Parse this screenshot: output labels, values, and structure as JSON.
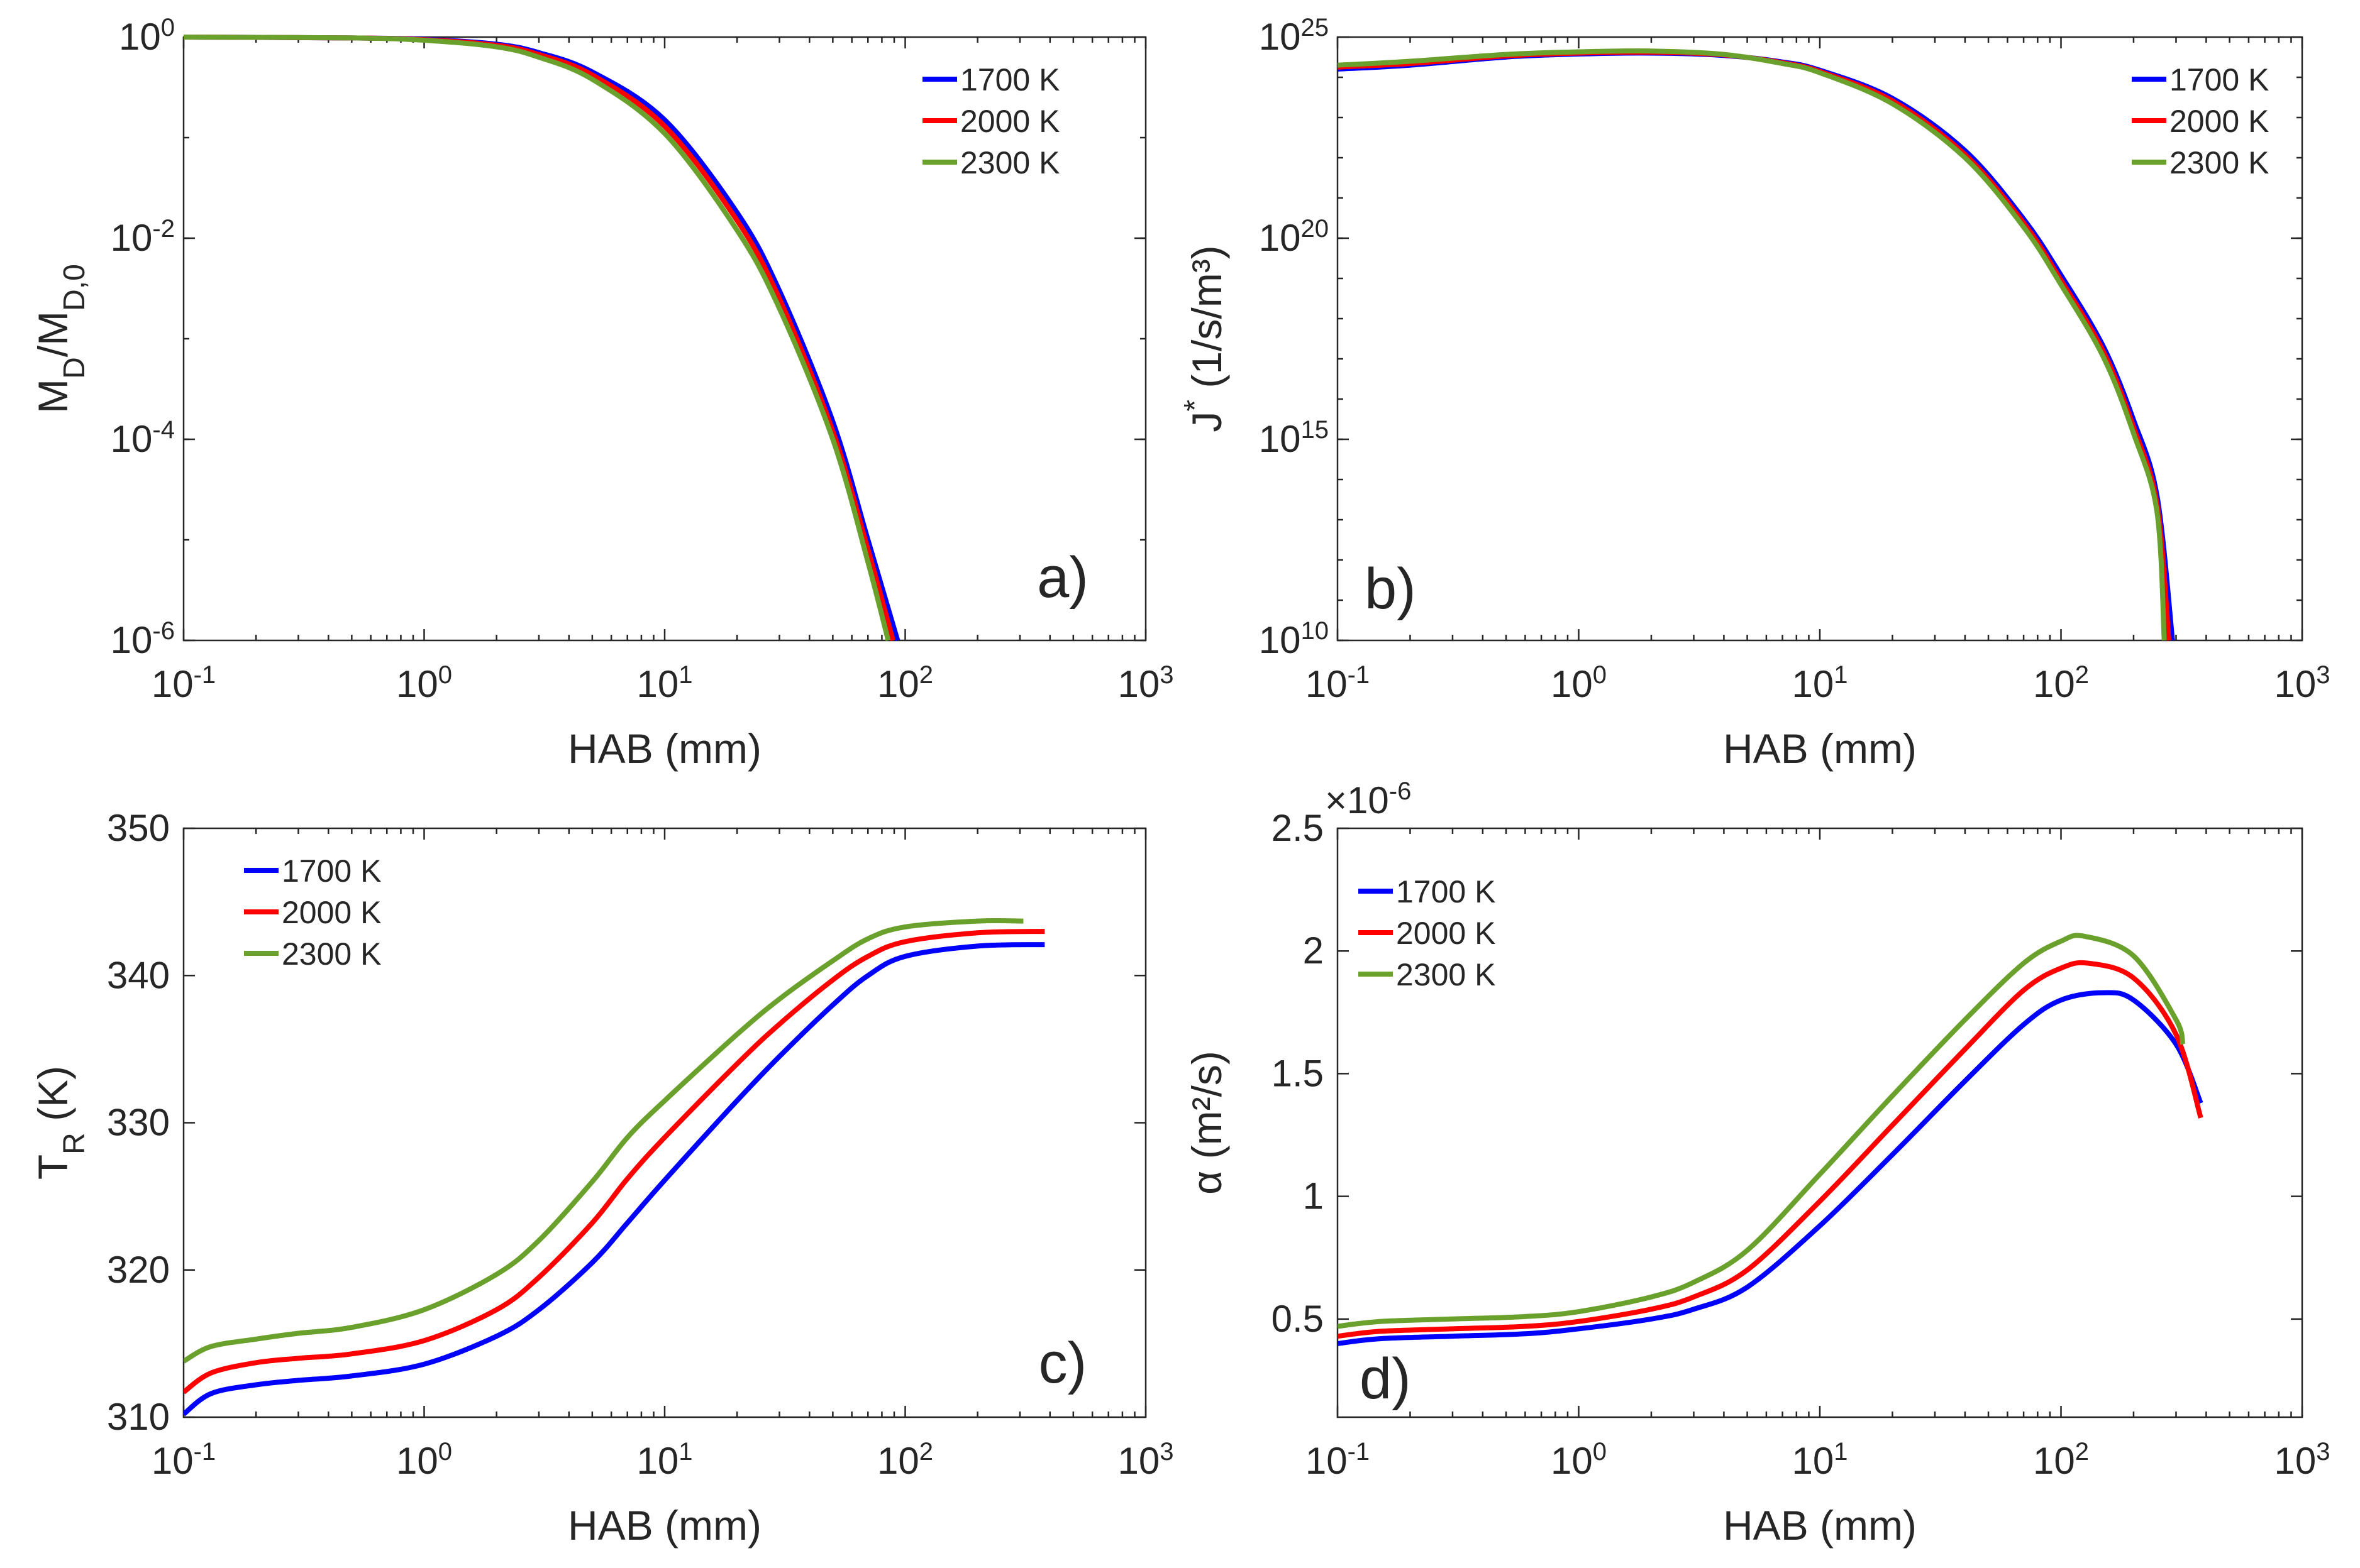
{
  "colors": {
    "1700 K": "#0000ff",
    "2000 K": "#ff0000",
    "2300 K": "#6aa02c"
  },
  "chart_data": [
    {
      "panel": "a)",
      "type": "line",
      "xscale": "log",
      "yscale": "log",
      "xlabel": "HAB (mm)",
      "ylabel": {
        "base": "M",
        "sub1": "D",
        "mid": "/M",
        "sub2": "D,0"
      },
      "xlim": [
        0.1,
        1000
      ],
      "ylim": [
        1e-06,
        1
      ],
      "xticks": [
        {
          "base": "10",
          "exp": "-1"
        },
        {
          "base": "10",
          "exp": "0"
        },
        {
          "base": "10",
          "exp": "1"
        },
        {
          "base": "10",
          "exp": "2"
        },
        {
          "base": "10",
          "exp": "3"
        }
      ],
      "yticks": [
        {
          "base": "10",
          "exp": "-6"
        },
        {
          "base": "10",
          "exp": "-4"
        },
        {
          "base": "10",
          "exp": "-2"
        },
        {
          "base": "10",
          "exp": "0"
        }
      ],
      "legend": {
        "position": "top-right",
        "entries": [
          "1700 K",
          "2000 K",
          "2300 K"
        ]
      },
      "series": [
        {
          "name": "1700 K",
          "x": [
            0.1,
            0.5,
            1,
            2,
            3,
            5,
            10,
            20,
            30,
            50,
            70,
            93
          ],
          "y": [
            1,
            0.98,
            0.95,
            0.85,
            0.7,
            0.45,
            0.15,
            0.018,
            0.003,
            0.00015,
            1e-05,
            1e-06
          ]
        },
        {
          "name": "2000 K",
          "x": [
            0.1,
            0.5,
            1,
            2,
            3,
            5,
            10,
            20,
            30,
            50,
            70,
            89
          ],
          "y": [
            1,
            0.98,
            0.94,
            0.83,
            0.67,
            0.42,
            0.13,
            0.015,
            0.0025,
            0.00012,
            8e-06,
            1e-06
          ]
        },
        {
          "name": "2300 K",
          "x": [
            0.1,
            0.5,
            1,
            2,
            3,
            5,
            10,
            20,
            30,
            50,
            70,
            85
          ],
          "y": [
            1,
            0.98,
            0.93,
            0.8,
            0.63,
            0.38,
            0.11,
            0.012,
            0.002,
            0.0001,
            6e-06,
            1e-06
          ]
        }
      ]
    },
    {
      "panel": "b)",
      "type": "line",
      "xscale": "log",
      "yscale": "log",
      "xlabel": "HAB (mm)",
      "ylabel": {
        "base": "J",
        "sup": "*",
        "unit": " (1/s/m³)"
      },
      "xlim": [
        0.1,
        1000
      ],
      "ylim": [
        10000000000.0,
        1e+25
      ],
      "xticks": [
        {
          "base": "10",
          "exp": "-1"
        },
        {
          "base": "10",
          "exp": "0"
        },
        {
          "base": "10",
          "exp": "1"
        },
        {
          "base": "10",
          "exp": "2"
        },
        {
          "base": "10",
          "exp": "3"
        }
      ],
      "yticks": [
        {
          "base": "10",
          "exp": "10"
        },
        {
          "base": "10",
          "exp": "15"
        },
        {
          "base": "10",
          "exp": "20"
        },
        {
          "base": "10",
          "exp": "25"
        }
      ],
      "legend": {
        "position": "top-right",
        "entries": [
          "1700 K",
          "2000 K",
          "2300 K"
        ]
      },
      "series": [
        {
          "name": "1700 K",
          "x": [
            0.1,
            0.2,
            0.5,
            1,
            2,
            4,
            7,
            10,
            20,
            40,
            70,
            100,
            150,
            200,
            250,
            290
          ],
          "y": [
            1.6e+24,
            2e+24,
            3.2e+24,
            3.8e+24,
            4e+24,
            3.5e+24,
            2.4e+24,
            1.5e+24,
            3e+23,
            1.5e+22,
            3e+20,
            1.2e+19,
            2e+17,
            3000000000000000.0,
            40000000000000.0,
            10000000000.0
          ]
        },
        {
          "name": "2000 K",
          "x": [
            0.1,
            0.2,
            0.5,
            1,
            2,
            4,
            7,
            10,
            20,
            40,
            70,
            100,
            150,
            200,
            250,
            280
          ],
          "y": [
            1.8e+24,
            2.2e+24,
            3.4e+24,
            4e+24,
            4.2e+24,
            3.6e+24,
            2.3e+24,
            1.4e+24,
            2.6e+23,
            1.2e+22,
            2.4e+20,
            9e+18,
            1.5e+17,
            2000000000000000.0,
            25000000000000.0,
            10000000000.0
          ]
        },
        {
          "name": "2300 K",
          "x": [
            0.1,
            0.2,
            0.5,
            1,
            2,
            4,
            7,
            10,
            20,
            40,
            70,
            100,
            150,
            200,
            250,
            268
          ],
          "y": [
            2e+24,
            2.5e+24,
            3.7e+24,
            4.3e+24,
            4.5e+24,
            3.7e+24,
            2.2e+24,
            1.3e+24,
            2.2e+23,
            1e+22,
            1.9e+20,
            7e+18,
            1.1e+17,
            1400000000000000.0,
            16000000000000.0,
            10000000000.0
          ]
        }
      ]
    },
    {
      "panel": "c)",
      "type": "line",
      "xscale": "log",
      "yscale": "linear",
      "xlabel": "HAB (mm)",
      "ylabel": {
        "base": "T",
        "sub": "R",
        "unit": " (K)"
      },
      "xlim": [
        0.1,
        1000
      ],
      "ylim": [
        310,
        350
      ],
      "xticks": [
        {
          "base": "10",
          "exp": "-1"
        },
        {
          "base": "10",
          "exp": "0"
        },
        {
          "base": "10",
          "exp": "1"
        },
        {
          "base": "10",
          "exp": "2"
        },
        {
          "base": "10",
          "exp": "3"
        }
      ],
      "yticks": [
        {
          "value": 310,
          "label": "310"
        },
        {
          "value": 320,
          "label": "320"
        },
        {
          "value": 330,
          "label": "330"
        },
        {
          "value": 340,
          "label": "340"
        },
        {
          "value": 350,
          "label": "350"
        }
      ],
      "legend": {
        "position": "top-left",
        "entries": [
          "1700 K",
          "2000 K",
          "2300 K"
        ]
      },
      "series": [
        {
          "name": "1700 K",
          "x": [
            0.1,
            0.13,
            0.2,
            0.3,
            0.5,
            1,
            2,
            3,
            5,
            7,
            10,
            20,
            30,
            50,
            70,
            100,
            200,
            380
          ],
          "y": [
            310.2,
            311.6,
            312.2,
            312.5,
            312.8,
            313.6,
            315.5,
            317.3,
            320.5,
            323.2,
            326.1,
            331.5,
            334.5,
            338.0,
            340.0,
            341.3,
            342.0,
            342.1
          ]
        },
        {
          "name": "2000 K",
          "x": [
            0.1,
            0.13,
            0.2,
            0.3,
            0.5,
            1,
            2,
            3,
            5,
            7,
            10,
            20,
            30,
            50,
            70,
            100,
            200,
            380
          ],
          "y": [
            311.7,
            313.0,
            313.7,
            314.0,
            314.3,
            315.2,
            317.3,
            319.5,
            323.2,
            326.2,
            329.0,
            334.0,
            336.7,
            339.7,
            341.3,
            342.3,
            342.9,
            343.0
          ]
        },
        {
          "name": "2300 K",
          "x": [
            0.1,
            0.13,
            0.2,
            0.3,
            0.5,
            1,
            2,
            3,
            5,
            7,
            10,
            20,
            30,
            50,
            70,
            100,
            200,
            310
          ],
          "y": [
            313.8,
            314.8,
            315.3,
            315.7,
            316.1,
            317.3,
            319.7,
            322.0,
            326.0,
            329.0,
            331.5,
            336.0,
            338.4,
            341.0,
            342.5,
            343.3,
            343.7,
            343.7
          ]
        }
      ]
    },
    {
      "panel": "d)",
      "type": "line",
      "xscale": "log",
      "yscale": "linear",
      "xlabel": "HAB (mm)",
      "ylabel": {
        "symbol": "α",
        "unit": " (m²/s)"
      },
      "multiplier": {
        "prefix": "×10",
        "exp": "-6"
      },
      "xlim": [
        0.1,
        1000
      ],
      "ylim": [
        0.1,
        2.5
      ],
      "xticks": [
        {
          "base": "10",
          "exp": "-1"
        },
        {
          "base": "10",
          "exp": "0"
        },
        {
          "base": "10",
          "exp": "1"
        },
        {
          "base": "10",
          "exp": "2"
        },
        {
          "base": "10",
          "exp": "3"
        }
      ],
      "yticks": [
        {
          "value": 0.5,
          "label": "0.5"
        },
        {
          "value": 1,
          "label": "1"
        },
        {
          "value": 1.5,
          "label": "1.5"
        },
        {
          "value": 2,
          "label": "2"
        },
        {
          "value": 2.5,
          "label": "2.5"
        }
      ],
      "legend": {
        "position": "top-left",
        "entries": [
          "1700 K",
          "2000 K",
          "2300 K"
        ]
      },
      "series": [
        {
          "name": "1700 K",
          "x": [
            0.1,
            0.15,
            0.3,
            0.6,
            1,
            2,
            3,
            5,
            10,
            20,
            40,
            70,
            100,
            150,
            200,
            300,
            380
          ],
          "y": [
            0.4,
            0.42,
            0.43,
            0.44,
            0.46,
            0.5,
            0.54,
            0.63,
            0.88,
            1.17,
            1.47,
            1.7,
            1.8,
            1.83,
            1.8,
            1.62,
            1.38
          ]
        },
        {
          "name": "2000 K",
          "x": [
            0.1,
            0.15,
            0.3,
            0.6,
            1,
            2,
            3,
            5,
            10,
            20,
            40,
            70,
            100,
            130,
            200,
            300,
            380
          ],
          "y": [
            0.43,
            0.45,
            0.46,
            0.47,
            0.49,
            0.54,
            0.59,
            0.7,
            0.98,
            1.29,
            1.6,
            1.84,
            1.93,
            1.95,
            1.89,
            1.66,
            1.32
          ]
        },
        {
          "name": "2300 K",
          "x": [
            0.1,
            0.15,
            0.3,
            0.6,
            1,
            2,
            3,
            5,
            10,
            20,
            40,
            70,
            100,
            125,
            200,
            300,
            320
          ],
          "y": [
            0.47,
            0.49,
            0.5,
            0.51,
            0.53,
            0.59,
            0.65,
            0.78,
            1.09,
            1.41,
            1.72,
            1.95,
            2.04,
            2.06,
            1.98,
            1.72,
            1.62
          ]
        }
      ]
    }
  ]
}
